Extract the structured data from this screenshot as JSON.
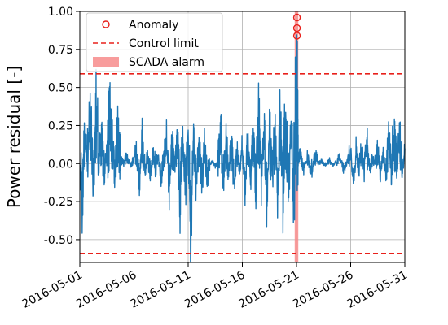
{
  "chart_data": {
    "type": "line",
    "title": "",
    "xlabel": "",
    "ylabel": "Power residual [-]",
    "xlim": [
      "2016-05-01",
      "2016-05-31"
    ],
    "ylim": [
      -0.65,
      1.0
    ],
    "grid": true,
    "x_ticks": [
      "2016-05-01",
      "2016-05-06",
      "2016-05-11",
      "2016-05-16",
      "2016-05-21",
      "2016-05-26",
      "2016-05-31"
    ],
    "y_ticks": [
      "-0.50",
      "-0.25",
      "0.00",
      "0.25",
      "0.50",
      "0.75",
      "1.00"
    ],
    "y_tick_values": [
      -0.5,
      -0.25,
      0.0,
      0.25,
      0.5,
      0.75,
      1.0
    ],
    "legend": {
      "position": "upper-left",
      "entries": [
        {
          "label": "Anomaly",
          "style": "marker-circle",
          "color": "#e8201b"
        },
        {
          "label": "Control limit",
          "style": "dashed-line",
          "color": "#e8201b"
        },
        {
          "label": "SCADA alarm",
          "style": "patch",
          "color": "#f78b8b"
        }
      ]
    },
    "colors": {
      "residual": "#1f77b4",
      "limit": "#e8201b",
      "alarm": "#f78b8b",
      "anomaly": "#e8201b"
    },
    "control_limits": [
      0.59,
      -0.59
    ],
    "scada_alarm": {
      "start": "2016-05-20T20:00",
      "end": "2016-05-21T04:00"
    },
    "anomalies": [
      {
        "x": "2016-05-21T01:00",
        "y": 0.96
      },
      {
        "x": "2016-05-21T01:00",
        "y": 0.89
      },
      {
        "x": "2016-05-21T01:00",
        "y": 0.84
      }
    ],
    "series": [
      {
        "values_description_in_points": true,
        "points": [
          [
            "2016-05-01T00:00",
            0.08
          ],
          [
            "2016-05-01T06:00",
            -0.39
          ],
          [
            "2016-05-01T10:00",
            0.2
          ],
          [
            "2016-05-01T16:00",
            0.1
          ],
          [
            "2016-05-02T00:00",
            0.35
          ],
          [
            "2016-05-02T06:00",
            -0.15
          ],
          [
            "2016-05-02T12:00",
            0.43
          ],
          [
            "2016-05-02T18:00",
            0.05
          ],
          [
            "2016-05-03T00:00",
            0.25
          ],
          [
            "2016-05-03T06:00",
            -0.1
          ],
          [
            "2016-05-03T12:00",
            0.15
          ],
          [
            "2016-05-03T18:00",
            0.41
          ],
          [
            "2016-05-04T00:00",
            0.2
          ],
          [
            "2016-05-04T06:00",
            -0.12
          ],
          [
            "2016-05-04T12:00",
            0.3
          ],
          [
            "2016-05-04T18:00",
            0.05
          ],
          [
            "2016-05-05T00:00",
            0.0
          ],
          [
            "2016-05-05T06:00",
            0.05
          ],
          [
            "2016-05-05T12:00",
            0.02
          ],
          [
            "2016-05-05T18:00",
            -0.02
          ],
          [
            "2016-05-06T00:00",
            0.05
          ],
          [
            "2016-05-06T06:00",
            0.1
          ],
          [
            "2016-05-06T12:00",
            -0.15
          ],
          [
            "2016-05-06T18:00",
            0.2
          ],
          [
            "2016-05-07T00:00",
            -0.1
          ],
          [
            "2016-05-07T06:00",
            0.08
          ],
          [
            "2016-05-07T12:00",
            -0.12
          ],
          [
            "2016-05-07T18:00",
            0.15
          ],
          [
            "2016-05-08T00:00",
            -0.05
          ],
          [
            "2016-05-08T06:00",
            0.1
          ],
          [
            "2016-05-08T12:00",
            -0.15
          ],
          [
            "2016-05-08T18:00",
            0.12
          ],
          [
            "2016-05-09T00:00",
            0.18
          ],
          [
            "2016-05-09T06:00",
            -0.2
          ],
          [
            "2016-05-09T12:00",
            0.22
          ],
          [
            "2016-05-09T18:00",
            -0.1
          ],
          [
            "2016-05-10T00:00",
            0.2
          ],
          [
            "2016-05-10T06:00",
            -0.32
          ],
          [
            "2016-05-10T12:00",
            0.25
          ],
          [
            "2016-05-10T18:00",
            -0.2
          ],
          [
            "2016-05-11T00:00",
            0.27
          ],
          [
            "2016-05-11T06:00",
            -0.51
          ],
          [
            "2016-05-11T12:00",
            0.22
          ],
          [
            "2016-05-11T18:00",
            -0.18
          ],
          [
            "2016-05-12T00:00",
            0.25
          ],
          [
            "2016-05-12T06:00",
            -0.25
          ],
          [
            "2016-05-12T12:00",
            0.18
          ],
          [
            "2016-05-12T18:00",
            -0.12
          ],
          [
            "2016-05-13T00:00",
            0.0
          ],
          [
            "2016-05-13T06:00",
            0.02
          ],
          [
            "2016-05-13T12:00",
            -0.02
          ],
          [
            "2016-05-13T18:00",
            0.01
          ],
          [
            "2016-05-14T00:00",
            0.25
          ],
          [
            "2016-05-14T06:00",
            -0.15
          ],
          [
            "2016-05-14T12:00",
            0.2
          ],
          [
            "2016-05-14T18:00",
            -0.1
          ],
          [
            "2016-05-15T00:00",
            0.18
          ],
          [
            "2016-05-15T06:00",
            -0.2
          ],
          [
            "2016-05-15T12:00",
            0.12
          ],
          [
            "2016-05-15T18:00",
            -0.05
          ],
          [
            "2016-05-16T00:00",
            0.15
          ],
          [
            "2016-05-16T06:00",
            -0.18
          ],
          [
            "2016-05-16T12:00",
            0.2
          ],
          [
            "2016-05-16T18:00",
            -0.1
          ],
          [
            "2016-05-17T00:00",
            0.25
          ],
          [
            "2016-05-17T06:00",
            -0.2
          ],
          [
            "2016-05-17T12:00",
            0.42
          ],
          [
            "2016-05-17T18:00",
            -0.15
          ],
          [
            "2016-05-18T00:00",
            0.3
          ],
          [
            "2016-05-18T06:00",
            -0.25
          ],
          [
            "2016-05-18T12:00",
            0.35
          ],
          [
            "2016-05-18T18:00",
            -0.12
          ],
          [
            "2016-05-19T00:00",
            0.3
          ],
          [
            "2016-05-19T06:00",
            -0.3
          ],
          [
            "2016-05-19T12:00",
            0.41
          ],
          [
            "2016-05-19T18:00",
            -0.2
          ],
          [
            "2016-05-20T00:00",
            0.55
          ],
          [
            "2016-05-20T06:00",
            -0.32
          ],
          [
            "2016-05-20T12:00",
            0.4
          ],
          [
            "2016-05-20T18:00",
            -0.28
          ],
          [
            "2016-05-21T00:00",
            0.82
          ],
          [
            "2016-05-21T02:00",
            0.45
          ],
          [
            "2016-05-21T04:00",
            0.02
          ],
          [
            "2016-05-21T08:00",
            0.08
          ],
          [
            "2016-05-21T16:00",
            -0.05
          ],
          [
            "2016-05-22T00:00",
            0.05
          ],
          [
            "2016-05-22T08:00",
            -0.1
          ],
          [
            "2016-05-22T16:00",
            0.08
          ],
          [
            "2016-05-23T00:00",
            0.0
          ],
          [
            "2016-05-23T08:00",
            0.02
          ],
          [
            "2016-05-23T16:00",
            -0.02
          ],
          [
            "2016-05-24T00:00",
            0.03
          ],
          [
            "2016-05-24T08:00",
            -0.02
          ],
          [
            "2016-05-24T16:00",
            0.02
          ],
          [
            "2016-05-25T00:00",
            0.05
          ],
          [
            "2016-05-25T08:00",
            -0.05
          ],
          [
            "2016-05-25T16:00",
            0.02
          ],
          [
            "2016-05-26T00:00",
            0.1
          ],
          [
            "2016-05-26T06:00",
            -0.15
          ],
          [
            "2016-05-26T12:00",
            0.12
          ],
          [
            "2016-05-26T18:00",
            -0.05
          ],
          [
            "2016-05-27T00:00",
            0.15
          ],
          [
            "2016-05-27T06:00",
            -0.05
          ],
          [
            "2016-05-27T12:00",
            0.18
          ],
          [
            "2016-05-27T18:00",
            -0.08
          ],
          [
            "2016-05-28T00:00",
            0.05
          ],
          [
            "2016-05-28T06:00",
            0.0
          ],
          [
            "2016-05-28T12:00",
            0.12
          ],
          [
            "2016-05-28T18:00",
            -0.08
          ],
          [
            "2016-05-29T00:00",
            0.1
          ],
          [
            "2016-05-29T06:00",
            -0.1
          ],
          [
            "2016-05-29T12:00",
            0.2
          ],
          [
            "2016-05-29T18:00",
            -0.05
          ],
          [
            "2016-05-30T00:00",
            0.3
          ],
          [
            "2016-05-30T06:00",
            -0.05
          ],
          [
            "2016-05-30T12:00",
            0.25
          ],
          [
            "2016-05-30T18:00",
            -0.08
          ],
          [
            "2016-05-31T00:00",
            0.1
          ]
        ]
      }
    ]
  }
}
